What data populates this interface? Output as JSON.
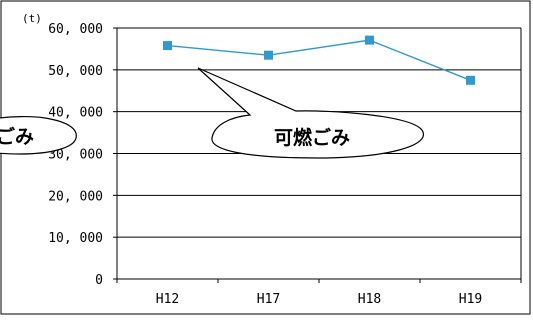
{
  "chart_data": {
    "type": "line",
    "title": "",
    "xlabel": "",
    "ylabel": "",
    "y_unit": "(t)",
    "categories": [
      "H12",
      "H17",
      "H18",
      "H19"
    ],
    "series": [
      {
        "values": [
          55800,
          53500,
          57100,
          47500
        ],
        "color": "#3399cc"
      }
    ],
    "ylim": [
      0,
      60000
    ],
    "y_ticks": [
      0,
      10000,
      20000,
      30000,
      40000,
      50000,
      60000
    ],
    "y_tick_labels": [
      "0",
      "10, 000",
      "20, 000",
      "30, 000",
      "40, 000",
      "50, 000",
      "60, 000"
    ],
    "grid": true,
    "annotations": [
      {
        "text": "可燃ごみ",
        "points_to": "series"
      },
      {
        "text": "ごみ",
        "note_partial": true
      }
    ]
  }
}
